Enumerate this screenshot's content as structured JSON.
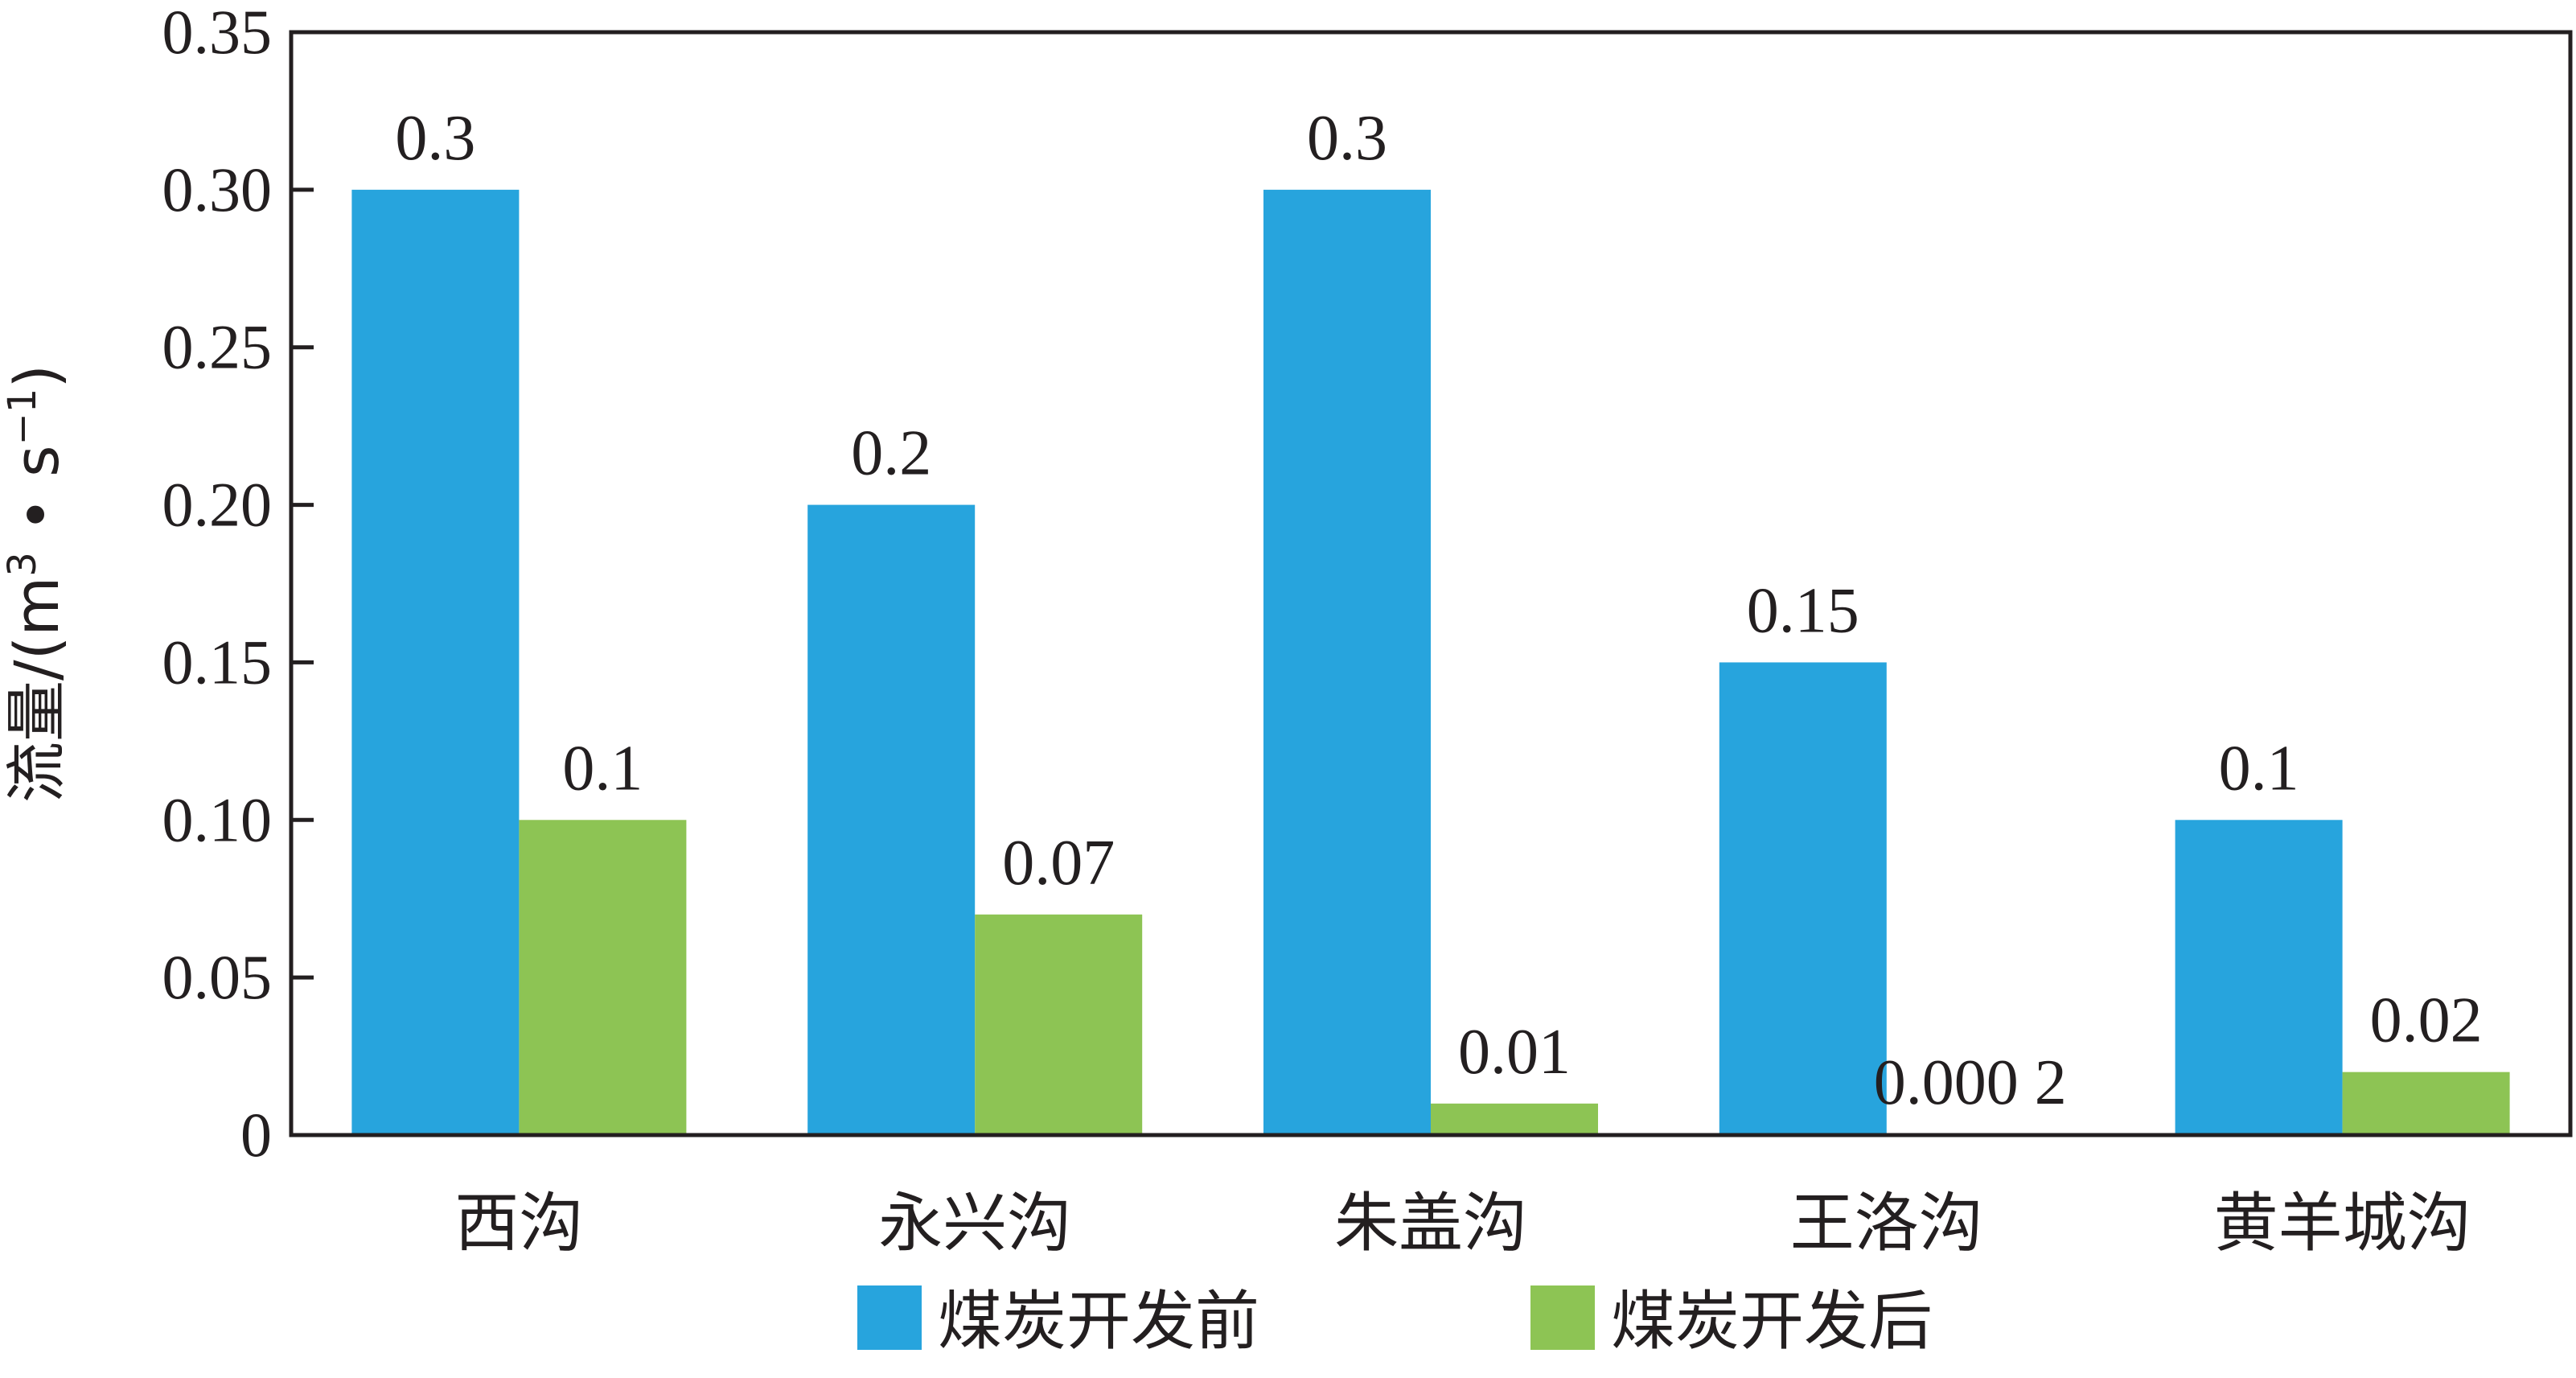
{
  "chart_data": {
    "type": "bar",
    "categories": [
      "西沟",
      "永兴沟",
      "朱盖沟",
      "王洛沟",
      "黄羊城沟"
    ],
    "series": [
      {
        "name": "煤炭开发前",
        "values": [
          0.3,
          0.2,
          0.3,
          0.15,
          0.1
        ],
        "labels": [
          "0.3",
          "0.2",
          "0.3",
          "0.15",
          "0.1"
        ],
        "color": "#27a4dd"
      },
      {
        "name": "煤炭开发后",
        "values": [
          0.1,
          0.07,
          0.01,
          0.0002,
          0.02
        ],
        "labels": [
          "0.1",
          "0.07",
          "0.01",
          "0.000 2",
          "0.02"
        ],
        "color": "#8dc454"
      }
    ],
    "ylabel": "流量/(m³ • s⁻¹)",
    "ylabel_parts": {
      "prefix": "流量/(m",
      "sup1": "3",
      "mid": " • s",
      "sup2": "−1",
      "suffix": ")"
    },
    "ylim": [
      0,
      0.35
    ],
    "yticks": [
      0,
      0.05,
      0.1,
      0.15,
      0.2,
      0.25,
      0.3,
      0.35
    ],
    "ytick_labels": [
      "0",
      "0.05",
      "0.10",
      "0.15",
      "0.20",
      "0.25",
      "0.30",
      "0.35"
    ],
    "legend_position": "bottom",
    "grid": false
  }
}
